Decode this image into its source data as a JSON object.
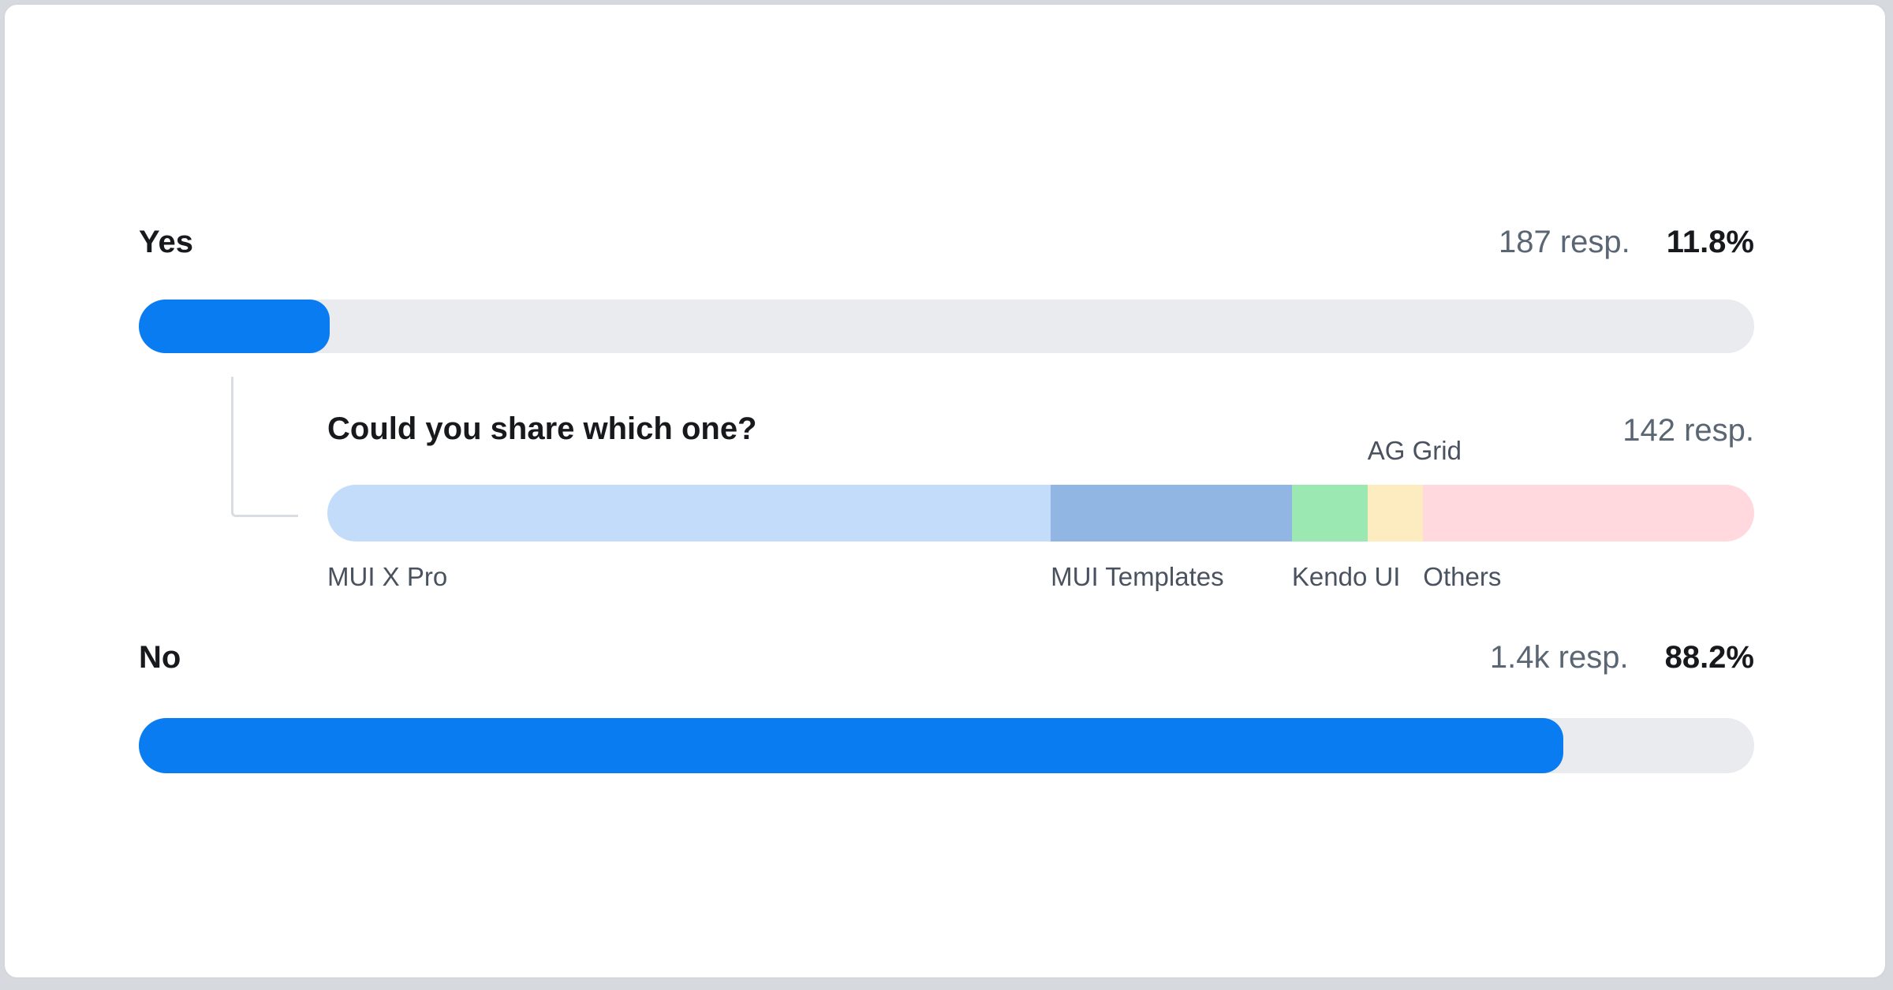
{
  "poll": {
    "rows": [
      {
        "label": "Yes",
        "responses": "187 resp.",
        "percent_label": "11.8%",
        "value": 11.8
      },
      {
        "label": "No",
        "responses": "1.4k resp.",
        "percent_label": "88.2%",
        "value": 88.2
      }
    ],
    "followup": {
      "question": "Could you share which one?",
      "responses": "142 resp.",
      "segments": [
        {
          "label": "MUI X Pro",
          "percent": 50.7,
          "color": "#c3dcf9",
          "label_position": "below"
        },
        {
          "label": "MUI Templates",
          "percent": 16.9,
          "color": "#92b6e4",
          "label_position": "below"
        },
        {
          "label": "Kendo UI",
          "percent": 5.3,
          "color": "#9ce8b2",
          "label_position": "below"
        },
        {
          "label": "AG Grid",
          "percent": 3.9,
          "color": "#fdecbf",
          "label_position": "above"
        },
        {
          "label": "Others",
          "percent": 23.2,
          "color": "#ffd9dd",
          "label_position": "below"
        }
      ]
    },
    "colors": {
      "bar_fill": "#0a7cf2",
      "bar_track": "#e9ebee",
      "text_dark": "#17191d",
      "text_gray": "#5a6673",
      "connector": "#d9dde2"
    }
  },
  "chart_data": [
    {
      "type": "bar",
      "subtype": "horizontal-progress",
      "title": "",
      "categories": [
        "Yes",
        "No"
      ],
      "values": [
        11.8,
        88.2
      ],
      "unit": "%",
      "value_labels": [
        "187 resp.",
        "1.4k resp."
      ],
      "xlim": [
        0,
        100
      ],
      "grid": false,
      "legend": false
    },
    {
      "type": "bar",
      "subtype": "stacked-horizontal",
      "title": "Could you share which one?",
      "total_label": "142 resp.",
      "categories": [
        "MUI X Pro",
        "MUI Templates",
        "Kendo UI",
        "AG Grid",
        "Others"
      ],
      "values": [
        50.7,
        16.9,
        5.3,
        3.9,
        23.2
      ],
      "unit": "%",
      "xlim": [
        0,
        100
      ],
      "grid": false,
      "legend": false
    }
  ]
}
